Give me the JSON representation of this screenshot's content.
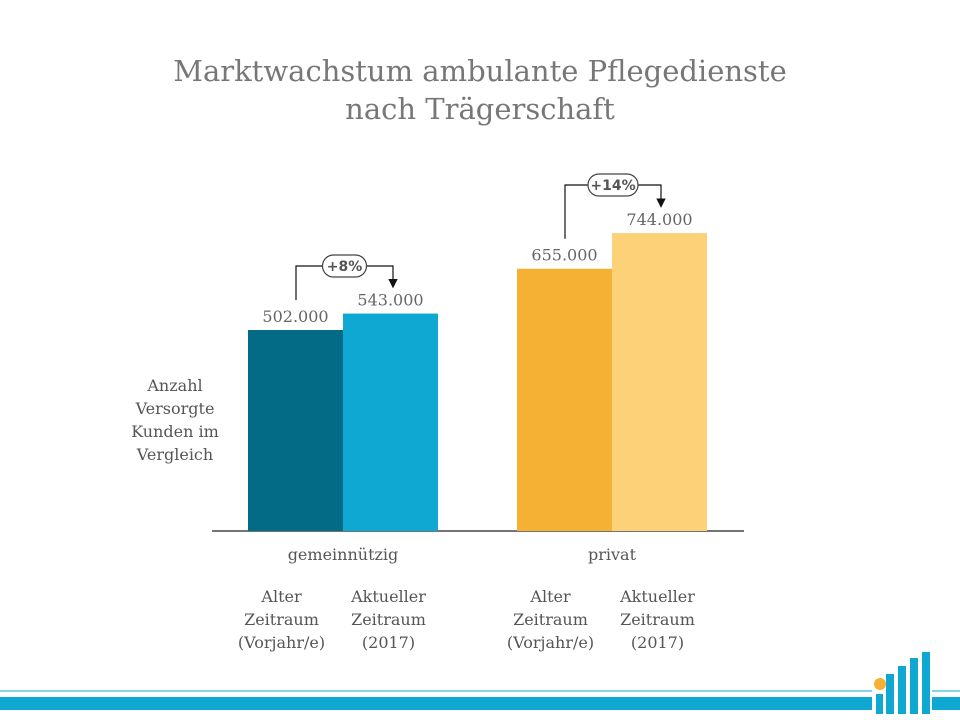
{
  "title_line1": "Marktwachstum ambulante Pflegedienste",
  "title_line2": "nach Trägerschaft",
  "y_label_lines": [
    "Anzahl",
    "Versorgte",
    "Kunden im",
    "Vergleich"
  ],
  "colors": {
    "gemeinnuetzig_alt": "#046b87",
    "gemeinnuetzig_aktuell": "#0fa8d3",
    "privat_alt": "#f5b133",
    "privat_aktuell": "#fcd178",
    "footer": "#0fa8d3"
  },
  "chart_data": {
    "type": "bar",
    "title": "Marktwachstum ambulante Pflegedienste nach Trägerschaft",
    "ylabel": "Anzahl Versorgte Kunden im Vergleich",
    "ylim": [
      0,
      800000
    ],
    "grid": false,
    "groups": [
      {
        "name": "gemeinnützig",
        "change": "+8%",
        "bars": [
          {
            "period_lines": [
              "Alter",
              "Zeitraum",
              "(Vorjahr/e)"
            ],
            "value": 502000,
            "value_label": "502.000"
          },
          {
            "period_lines": [
              "Aktueller",
              "Zeitraum",
              "(2017)"
            ],
            "value": 543000,
            "value_label": "543.000"
          }
        ]
      },
      {
        "name": "privat",
        "change": "+14%",
        "bars": [
          {
            "period_lines": [
              "Alter",
              "Zeitraum",
              "(Vorjahr/e)"
            ],
            "value": 655000,
            "value_label": "655.000"
          },
          {
            "period_lines": [
              "Aktueller",
              "Zeitraum",
              "(2017)"
            ],
            "value": 744000,
            "value_label": "744.000"
          }
        ]
      }
    ]
  },
  "logo_icon": "company-logo-icon"
}
